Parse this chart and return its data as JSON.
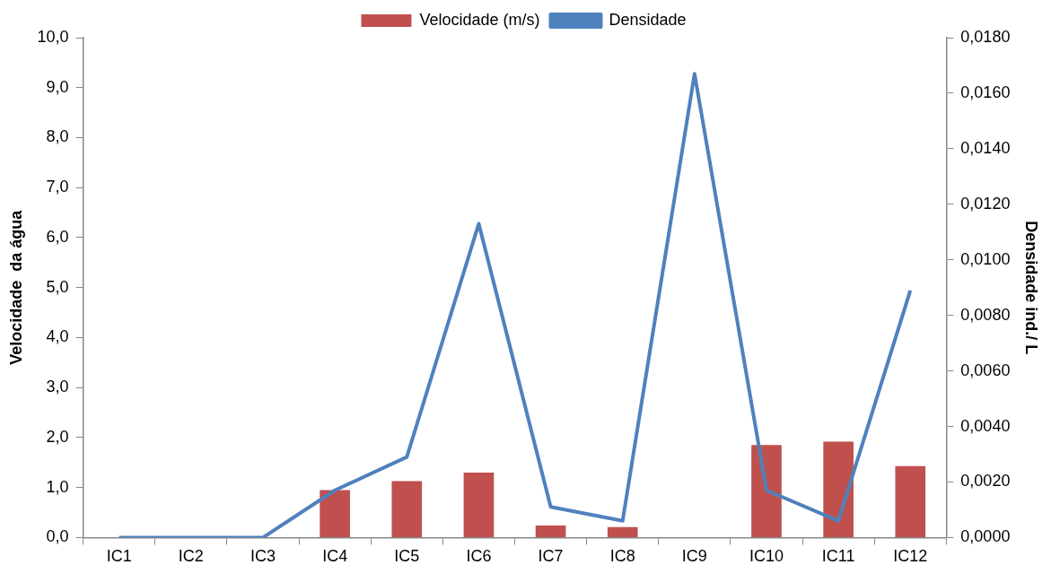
{
  "chart_data": {
    "type": "bar",
    "categories": [
      "IC1",
      "IC2",
      "IC3",
      "IC4",
      "IC5",
      "IC6",
      "IC7",
      "IC8",
      "IC9",
      "IC10",
      "IC11",
      "IC12"
    ],
    "series": [
      {
        "name": "Velocidade (m/s)",
        "color": "#c0504d",
        "values": [
          0,
          0,
          0,
          0.95,
          1.13,
          1.3,
          0.24,
          0.21,
          0,
          1.85,
          1.92,
          1.43
        ]
      },
      {
        "name": "Densidade",
        "type": "line",
        "axis": "y2",
        "color": "#4f81bd",
        "values": [
          0,
          0,
          0,
          0.0017,
          0.0029,
          0.0113,
          0.0011,
          0.0006,
          0.0167,
          0.0017,
          0.0006,
          0.0089
        ]
      }
    ],
    "ylabel": "Velocidade  da água",
    "y2label": "Densidade ind./ L",
    "ylim": [
      0,
      10
    ],
    "yticks": [
      {
        "value": 0,
        "label": "0,0"
      },
      {
        "value": 1,
        "label": "1,0"
      },
      {
        "value": 2,
        "label": "2,0"
      },
      {
        "value": 3,
        "label": "3,0"
      },
      {
        "value": 4,
        "label": "4,0"
      },
      {
        "value": 5,
        "label": "5,0"
      },
      {
        "value": 6,
        "label": "6,0"
      },
      {
        "value": 7,
        "label": "7,0"
      },
      {
        "value": 8,
        "label": "8,0"
      },
      {
        "value": 9,
        "label": "9,0"
      },
      {
        "value": 10,
        "label": "10,0"
      }
    ],
    "y2lim": [
      0,
      0.018
    ],
    "y2ticks": [
      {
        "value": 0,
        "label": "0,0000"
      },
      {
        "value": 0.002,
        "label": "0,0020"
      },
      {
        "value": 0.004,
        "label": "0,0040"
      },
      {
        "value": 0.006,
        "label": "0,0060"
      },
      {
        "value": 0.008,
        "label": "0,0080"
      },
      {
        "value": 0.01,
        "label": "0,0100"
      },
      {
        "value": 0.012,
        "label": "0,0120"
      },
      {
        "value": 0.014,
        "label": "0,0140"
      },
      {
        "value": 0.016,
        "label": "0,0160"
      },
      {
        "value": 0.018,
        "label": "0,0180"
      }
    ],
    "grid": false,
    "legend": "top",
    "marker": "none",
    "line_style": "solid"
  }
}
